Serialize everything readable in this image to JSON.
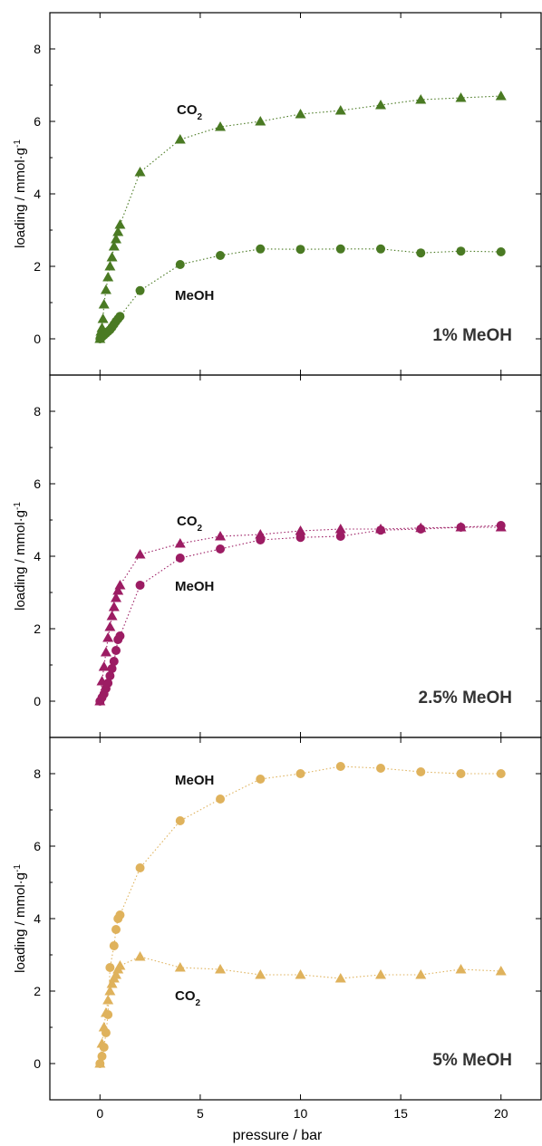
{
  "chart_data": [
    {
      "type": "scatter",
      "panel_label": "1% MeOH",
      "color": "#4a7a23",
      "xlabel": "",
      "ylabel": "loading / mmol·g",
      "ylabel_sup": "-1",
      "xlim": [
        -2.5,
        22
      ],
      "ylim": [
        -1,
        9
      ],
      "yticks": [
        "0",
        "2",
        "4",
        "6",
        "8"
      ],
      "series": [
        {
          "name": "CO",
          "name_sub": "2",
          "marker": "triangle",
          "x": [
            0,
            0.05,
            0.1,
            0.15,
            0.2,
            0.3,
            0.4,
            0.5,
            0.6,
            0.7,
            0.8,
            0.9,
            1.0,
            2,
            4,
            6,
            8,
            10,
            12,
            14,
            16,
            18,
            20
          ],
          "y": [
            0,
            0.2,
            0.3,
            0.55,
            0.95,
            1.35,
            1.7,
            2.0,
            2.25,
            2.55,
            2.75,
            2.95,
            3.15,
            4.6,
            5.5,
            5.85,
            6.0,
            6.2,
            6.3,
            6.45,
            6.6,
            6.65,
            6.7
          ]
        },
        {
          "name": "MeOH",
          "marker": "circle",
          "x": [
            0,
            0.1,
            0.2,
            0.3,
            0.4,
            0.5,
            0.6,
            0.7,
            0.8,
            0.9,
            1.0,
            2,
            4,
            6,
            8,
            10,
            12,
            14,
            16,
            18,
            20
          ],
          "y": [
            0,
            0.05,
            0.1,
            0.15,
            0.2,
            0.25,
            0.32,
            0.4,
            0.48,
            0.55,
            0.62,
            1.33,
            2.05,
            2.3,
            2.48,
            2.47,
            2.48,
            2.48,
            2.37,
            2.42,
            2.4
          ]
        }
      ]
    },
    {
      "type": "scatter",
      "panel_label": "2.5% MeOH",
      "color": "#9c1c63",
      "xlabel": "",
      "ylabel": "loading / mmol·g",
      "ylabel_sup": "-1",
      "xlim": [
        -2.5,
        22
      ],
      "ylim": [
        -1,
        9
      ],
      "yticks": [
        "0",
        "2",
        "4",
        "6",
        "8"
      ],
      "series": [
        {
          "name": "CO",
          "name_sub": "2",
          "marker": "triangle",
          "x": [
            0,
            0.1,
            0.2,
            0.3,
            0.4,
            0.5,
            0.6,
            0.7,
            0.8,
            0.9,
            1.0,
            2,
            4,
            6,
            8,
            10,
            12,
            14,
            16,
            18,
            20
          ],
          "y": [
            0,
            0.55,
            0.95,
            1.35,
            1.75,
            2.05,
            2.35,
            2.6,
            2.85,
            3.05,
            3.2,
            4.05,
            4.35,
            4.55,
            4.6,
            4.7,
            4.75,
            4.75,
            4.78,
            4.8,
            4.8
          ]
        },
        {
          "name": "MeOH",
          "marker": "circle",
          "x": [
            0,
            0.1,
            0.2,
            0.3,
            0.4,
            0.5,
            0.6,
            0.7,
            0.8,
            0.9,
            1.0,
            2,
            4,
            6,
            8,
            10,
            12,
            14,
            16,
            18,
            20
          ],
          "y": [
            0,
            0.1,
            0.2,
            0.35,
            0.5,
            0.7,
            0.9,
            1.1,
            1.4,
            1.7,
            1.8,
            3.2,
            3.95,
            4.2,
            4.45,
            4.52,
            4.55,
            4.72,
            4.75,
            4.8,
            4.85
          ]
        }
      ]
    },
    {
      "type": "scatter",
      "panel_label": "5% MeOH",
      "color": "#dfb25c",
      "xlabel": "pressure / bar",
      "ylabel": "loading / mmol·g",
      "ylabel_sup": "-1",
      "xlim": [
        -2.5,
        22
      ],
      "ylim": [
        -1,
        9
      ],
      "xticks": [
        "0",
        "5",
        "10",
        "15",
        "20"
      ],
      "yticks": [
        "0",
        "2",
        "4",
        "6",
        "8"
      ],
      "series": [
        {
          "name": "MeOH",
          "marker": "circle",
          "x": [
            0,
            0.1,
            0.2,
            0.3,
            0.4,
            0.5,
            0.7,
            0.8,
            0.9,
            1.0,
            2,
            4,
            6,
            8,
            10,
            12,
            14,
            16,
            18,
            20
          ],
          "y": [
            0,
            0.2,
            0.45,
            0.85,
            1.35,
            2.65,
            3.25,
            3.7,
            4.0,
            4.1,
            5.4,
            6.7,
            7.3,
            7.85,
            8.0,
            8.2,
            8.15,
            8.05,
            8.0,
            8.0
          ]
        },
        {
          "name": "CO",
          "name_sub": "2",
          "marker": "triangle",
          "x": [
            0,
            0.1,
            0.2,
            0.3,
            0.4,
            0.5,
            0.6,
            0.7,
            0.8,
            0.9,
            1.0,
            2,
            4,
            6,
            8,
            10,
            12,
            14,
            16,
            18,
            20
          ],
          "y": [
            0,
            0.55,
            1.0,
            1.4,
            1.75,
            2.0,
            2.2,
            2.35,
            2.45,
            2.6,
            2.7,
            2.95,
            2.65,
            2.6,
            2.45,
            2.45,
            2.35,
            2.45,
            2.45,
            2.6,
            2.55
          ]
        }
      ]
    }
  ]
}
